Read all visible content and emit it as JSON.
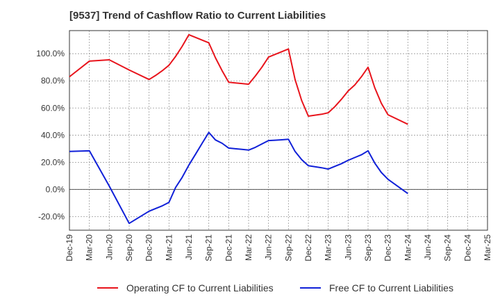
{
  "chart_data": {
    "type": "line",
    "title": "[9537]  Trend of Cashflow Ratio to Current Liabilities",
    "xlabel": "",
    "ylabel": "",
    "ylim": [
      -30,
      117
    ],
    "yticks": [
      -20,
      0,
      20,
      40,
      60,
      80,
      100
    ],
    "ytick_labels": [
      "-20.0%",
      "0.0%",
      "20.0%",
      "40.0%",
      "60.0%",
      "80.0%",
      "100.0%"
    ],
    "x_tick_labels": [
      "Dec-19",
      "Mar-20",
      "Jun-20",
      "Sep-20",
      "Dec-20",
      "Mar-21",
      "Jun-21",
      "Sep-21",
      "Dec-21",
      "Mar-22",
      "Jun-22",
      "Sep-22",
      "Dec-22",
      "Mar-23",
      "Jun-23",
      "Sep-23",
      "Dec-23",
      "Mar-24",
      "Jun-24",
      "Sep-24",
      "Dec-24",
      "Mar-25"
    ],
    "grid": true,
    "legend_position": "bottom",
    "series": [
      {
        "name": "Operating CF to Current Liabilities",
        "color": "#e8141c",
        "x": [
          "Dec-19",
          "Mar-20",
          "Jun-20",
          "Sep-20",
          "Dec-20",
          "Jan-21",
          "Feb-21",
          "Mar-21",
          "Apr-21",
          "May-21",
          "Jun-21",
          "Jul-21",
          "Aug-21",
          "Sep-21",
          "Oct-21",
          "Nov-21",
          "Dec-21",
          "Jan-22",
          "Feb-22",
          "Mar-22",
          "Apr-22",
          "May-22",
          "Jun-22",
          "Jul-22",
          "Aug-22",
          "Sep-22",
          "Oct-22",
          "Nov-22",
          "Dec-22",
          "Jan-23",
          "Feb-23",
          "Mar-23",
          "Apr-23",
          "May-23",
          "Jun-23",
          "Jul-23",
          "Aug-23",
          "Sep-23",
          "Oct-23",
          "Nov-23",
          "Dec-23",
          "Mar-24"
        ],
        "values": [
          83.0,
          94.5,
          95.5,
          88.0,
          81.0,
          84.0,
          87.5,
          91.5,
          98.0,
          105.5,
          114.0,
          112.0,
          110.0,
          108.0,
          97.0,
          87.5,
          79.0,
          78.5,
          78.0,
          77.5,
          83.5,
          90.0,
          97.5,
          99.5,
          101.5,
          103.5,
          81.0,
          65.5,
          54.0,
          54.7,
          55.4,
          56.5,
          61.0,
          66.5,
          72.5,
          77.0,
          83.0,
          90.0,
          75.0,
          63.5,
          55.0,
          48.0
        ]
      },
      {
        "name": "Free CF to Current Liabilities",
        "color": "#1020d8",
        "x": [
          "Dec-19",
          "Mar-20",
          "Jun-20",
          "Sep-20",
          "Dec-20",
          "Jan-21",
          "Feb-21",
          "Mar-21",
          "Apr-21",
          "May-21",
          "Jun-21",
          "Jul-21",
          "Aug-21",
          "Sep-21",
          "Oct-21",
          "Nov-21",
          "Dec-21",
          "Jan-22",
          "Feb-22",
          "Mar-22",
          "Apr-22",
          "May-22",
          "Jun-22",
          "Jul-22",
          "Aug-22",
          "Sep-22",
          "Oct-22",
          "Nov-22",
          "Dec-22",
          "Jan-23",
          "Feb-23",
          "Mar-23",
          "Apr-23",
          "May-23",
          "Jun-23",
          "Jul-23",
          "Aug-23",
          "Sep-23",
          "Oct-23",
          "Nov-23",
          "Dec-23",
          "Mar-24"
        ],
        "values": [
          28.0,
          28.5,
          2.5,
          -25.0,
          -16.0,
          -14.0,
          -12.0,
          -9.5,
          1.5,
          9.0,
          18.0,
          26.0,
          34.0,
          42.0,
          36.5,
          34.0,
          30.5,
          30.0,
          29.5,
          29.0,
          31.0,
          33.5,
          36.0,
          36.3,
          36.6,
          37.0,
          28.0,
          22.0,
          17.5,
          16.7,
          16.0,
          15.0,
          17.0,
          19.0,
          21.5,
          23.5,
          25.5,
          28.5,
          19.5,
          12.5,
          7.5,
          -3.0
        ]
      }
    ]
  }
}
